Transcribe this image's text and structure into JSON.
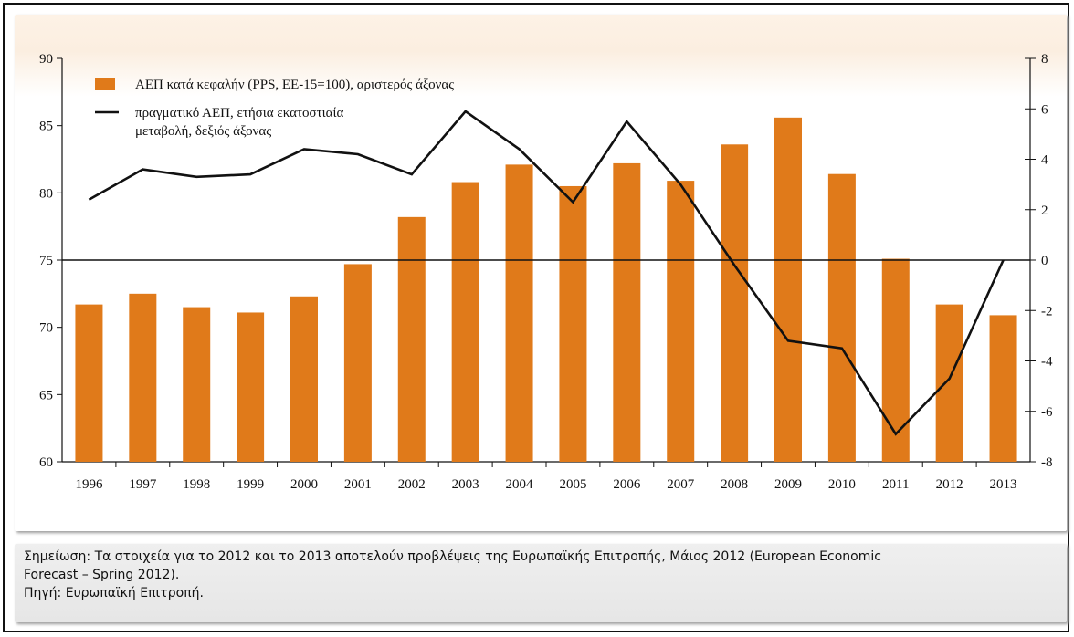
{
  "chart_data": {
    "type": "bar+line",
    "categories": [
      "1996",
      "1997",
      "1998",
      "1999",
      "2000",
      "2001",
      "2002",
      "2003",
      "2004",
      "2005",
      "2006",
      "2007",
      "2008",
      "2009",
      "2010",
      "2011",
      "2012",
      "2013"
    ],
    "series": [
      {
        "name": "ΑΕΠ κατά κεφαλήν (PPS, ΕΕ-15=100), αριστερός άξονας",
        "type": "bar",
        "axis": "left",
        "color": "#E07A1A",
        "values": [
          71.7,
          72.5,
          71.5,
          71.1,
          72.3,
          74.7,
          78.2,
          80.8,
          82.1,
          80.5,
          82.2,
          80.9,
          83.6,
          85.6,
          81.4,
          75.1,
          71.7,
          70.9
        ]
      },
      {
        "name": "πραγματικό ΑΕΠ, ετήσια εκατοστιαία μεταβολή, δεξιός άξονας",
        "name_lines": [
          "πραγματικό ΑΕΠ, ετήσια εκατοστιαία",
          "μεταβολή, δεξιός άξονας"
        ],
        "type": "line",
        "axis": "right",
        "color": "#111111",
        "values": [
          2.4,
          3.6,
          3.3,
          3.4,
          4.4,
          4.2,
          3.4,
          5.9,
          4.4,
          2.3,
          5.5,
          3.0,
          -0.2,
          -3.2,
          -3.5,
          -6.9,
          -4.7,
          0.0
        ]
      }
    ],
    "left_axis": {
      "ylim": [
        60,
        90
      ],
      "ticks": [
        "60",
        "65",
        "70",
        "75",
        "80",
        "85",
        "90"
      ]
    },
    "right_axis": {
      "ylim": [
        -8,
        8
      ],
      "ticks": [
        "-8",
        "-6",
        "-4",
        "-2",
        "0",
        "2",
        "4",
        "6",
        "8"
      ]
    },
    "legend_position": "top-left",
    "reference_line": 0,
    "grid": false
  },
  "note": {
    "line1": "Σημείωση: Τα στοιχεία για το 2012 και το 2013 αποτελούν προβλέψεις της Ευρωπαϊκής Επιτροπής, Μάιος 2012 (European Economic",
    "line2": "Forecast – Spring 2012).",
    "line3": "Πηγή: Ευρωπαϊκή Επιτροπή."
  }
}
